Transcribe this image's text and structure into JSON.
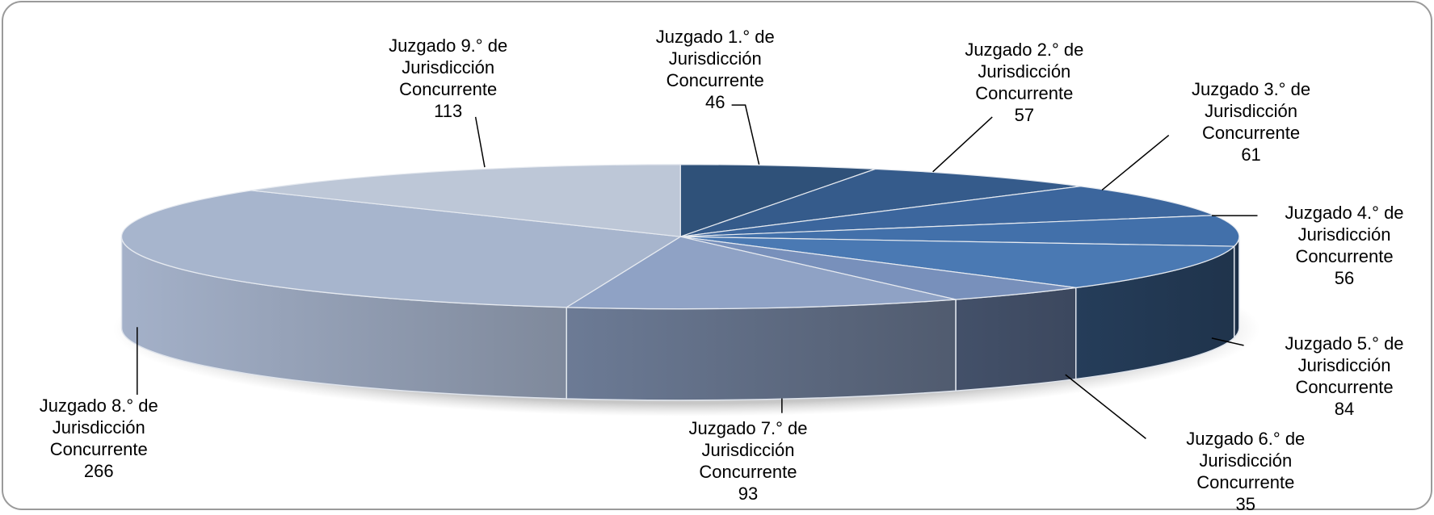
{
  "chart_data": {
    "type": "pie3d",
    "categories": [
      "Juzgado 1.° de Jurisdicción Concurrente",
      "Juzgado 2.° de Jurisdicción Concurrente",
      "Juzgado 3.° de Jurisdicción Concurrente",
      "Juzgado 4.° de Jurisdicción Concurrente",
      "Juzgado 5.° de Jurisdicción Concurrente",
      "Juzgado 6.° de Jurisdicción Concurrente",
      "Juzgado 7.° de Jurisdicción Concurrente",
      "Juzgado 8.° de Jurisdicción Concurrente",
      "Juzgado 9.° de Jurisdicción Concurrente"
    ],
    "values": [
      46,
      57,
      61,
      56,
      84,
      35,
      93,
      266,
      113
    ],
    "colors": [
      "#2f5179",
      "#355b8b",
      "#3c669d",
      "#4270aa",
      "#4a79b3",
      "#7890bb",
      "#8fa2c5",
      "#a7b5cd",
      "#bdc7d7"
    ]
  }
}
